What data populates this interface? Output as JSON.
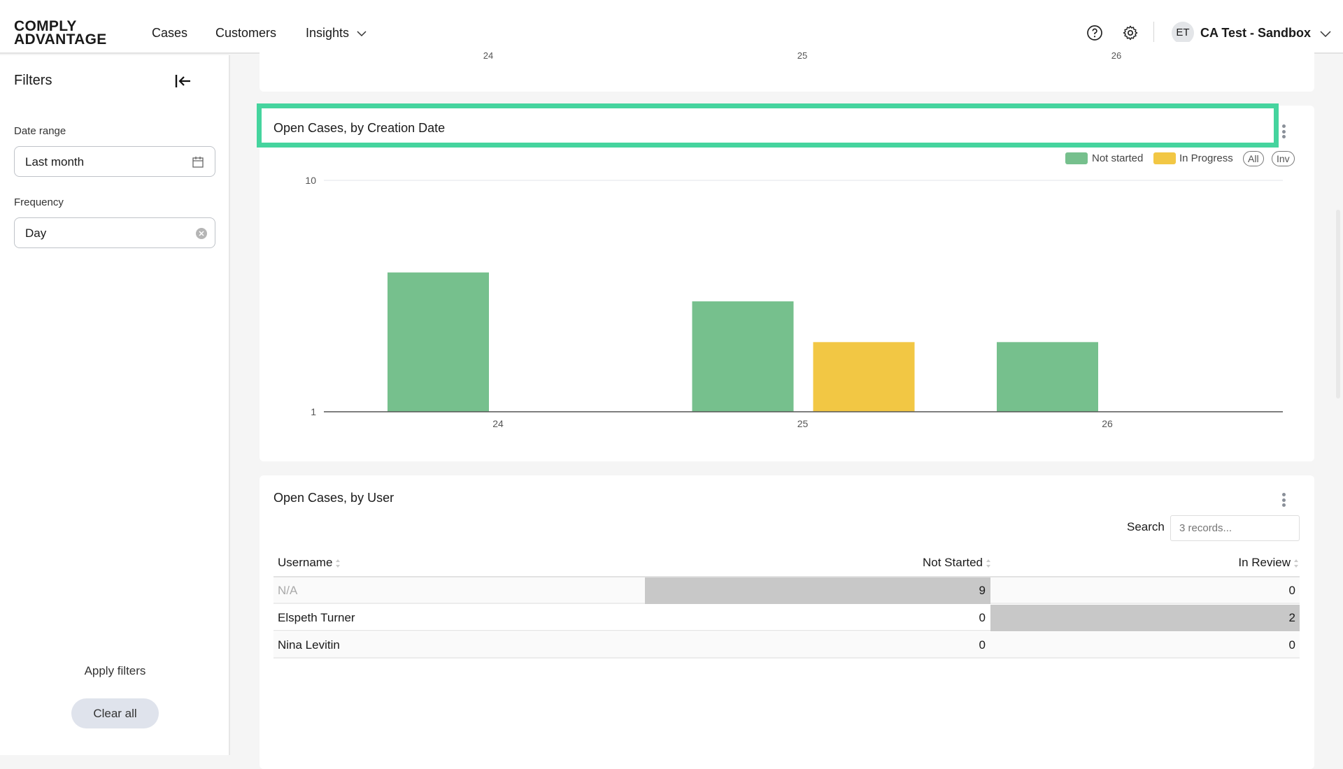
{
  "header": {
    "logo": "COMPLY ADVANTAGE",
    "nav": [
      "Cases",
      "Customers",
      "Insights"
    ],
    "active_nav": "Insights",
    "account_initials": "ET",
    "account_name": "CA Test - Sandbox"
  },
  "sidebar": {
    "title": "Filters",
    "date_range_label": "Date range",
    "date_range_value": "Last month",
    "frequency_label": "Frequency",
    "frequency_value": "Day",
    "apply_label": "Apply filters",
    "clear_label": "Clear all"
  },
  "previous_chart": {
    "x_ticks": [
      "24",
      "25",
      "26"
    ]
  },
  "chart_card": {
    "title": "Open Cases, by Creation Date",
    "legend_all": "All",
    "legend_inv": "Inv"
  },
  "chart_data": {
    "type": "bar",
    "title": "Open Cases, by Creation Date",
    "categories": [
      "24",
      "25",
      "26"
    ],
    "series": [
      {
        "name": "Not started",
        "color": "#76c08d",
        "values": [
          4,
          3,
          2
        ]
      },
      {
        "name": "In Progress",
        "color": "#f2c744",
        "values": [
          0,
          2,
          0
        ]
      }
    ],
    "y_scale": "log",
    "ylim": [
      1,
      10
    ],
    "y_ticks": [
      "1",
      "10"
    ],
    "grid": true,
    "legend": "top-right"
  },
  "table_card": {
    "title": "Open Cases, by User",
    "search_label": "Search",
    "search_placeholder": "3 records...",
    "columns": [
      "Username",
      "Not Started",
      "In Review"
    ],
    "rows": [
      {
        "username": "N/A",
        "not_started": "9",
        "in_review": "0"
      },
      {
        "username": "Elspeth Turner",
        "not_started": "0",
        "in_review": "2"
      },
      {
        "username": "Nina Levitin",
        "not_started": "0",
        "in_review": "0"
      }
    ],
    "highlight_color": "#c8c8c8"
  },
  "highlight_color": "#45d49e"
}
